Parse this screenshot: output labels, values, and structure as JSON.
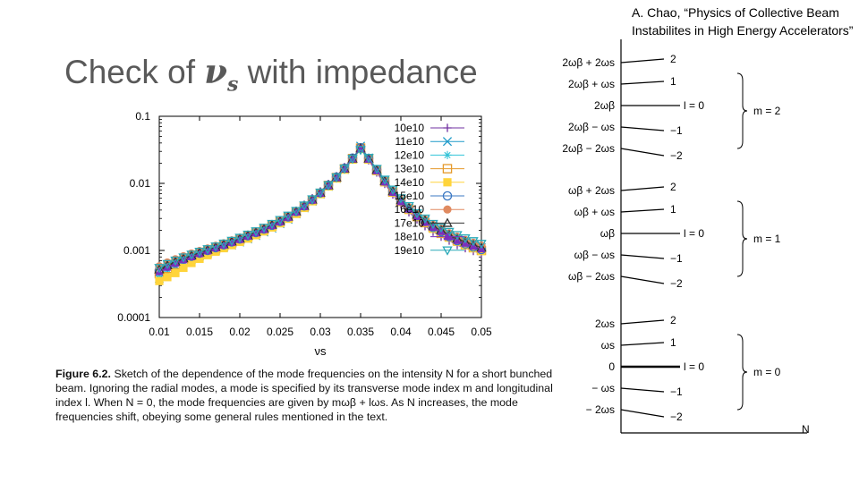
{
  "slide": {
    "title_prefix": "Check of",
    "title_symbol": "ν",
    "title_symbol_sub": "s",
    "title_suffix": "with impedance",
    "citation": "A. Chao, “Physics of Collective Beam Instabilites in High Energy Accelerators”"
  },
  "caption": {
    "label": "Figure 6.2.",
    "text": "Sketch of the dependence of the mode frequencies on the intensity N for a short bunched beam. Ignoring the radial modes, a mode is specified by its transverse mode index m and longitudinal index l. When N = 0, the mode frequencies are given by mωβ + lωs. As N increases, the mode frequencies shift, obeying some general rules mentioned in the text."
  },
  "chart_data": {
    "type": "scatter",
    "xlabel": "νs",
    "ylabel": "",
    "xscale": "linear",
    "yscale": "log",
    "xlim": [
      0.01,
      0.05
    ],
    "ylim": [
      0.0001,
      0.1
    ],
    "xticks": [
      "0.01",
      "0.015",
      "0.02",
      "0.025",
      "0.03",
      "0.035",
      "0.04",
      "0.045",
      "0.05"
    ],
    "yticks": [
      "0.1",
      "0.01",
      "0.001",
      "0.0001"
    ],
    "legend_position": "top-right",
    "x": [
      0.01,
      0.011,
      0.012,
      0.013,
      0.014,
      0.015,
      0.016,
      0.017,
      0.018,
      0.019,
      0.02,
      0.021,
      0.022,
      0.023,
      0.024,
      0.025,
      0.026,
      0.027,
      0.028,
      0.029,
      0.03,
      0.031,
      0.032,
      0.033,
      0.034,
      0.035,
      0.036,
      0.037,
      0.038,
      0.039,
      0.04,
      0.041,
      0.042,
      0.043,
      0.044,
      0.045,
      0.046,
      0.047,
      0.048,
      0.049,
      0.05
    ],
    "series": [
      {
        "name": "10e10",
        "marker": "plus",
        "color": "#7030a0",
        "values": [
          0.00056,
          0.00062,
          0.00068,
          0.00075,
          0.00082,
          0.0009,
          0.00098,
          0.00107,
          0.00118,
          0.0013,
          0.00143,
          0.0016,
          0.0018,
          0.00205,
          0.00235,
          0.0027,
          0.0032,
          0.0039,
          0.0048,
          0.006,
          0.0076,
          0.0098,
          0.0128,
          0.0175,
          0.024,
          0.033,
          0.022,
          0.0145,
          0.0098,
          0.0068,
          0.0049,
          0.0037,
          0.0029,
          0.0023,
          0.0019,
          0.0016,
          0.0014,
          0.0012,
          0.00108,
          0.00098,
          0.0009
        ]
      },
      {
        "name": "11e10",
        "marker": "x",
        "color": "#1f9ac9",
        "values": [
          0.00038,
          0.00048,
          0.00058,
          0.00066,
          0.00074,
          0.00082,
          0.0009,
          0.001,
          0.0011,
          0.0012,
          0.00133,
          0.00148,
          0.00166,
          0.00188,
          0.00215,
          0.0025,
          0.0029,
          0.0035,
          0.0043,
          0.0054,
          0.0069,
          0.009,
          0.0118,
          0.016,
          0.023,
          0.036,
          0.024,
          0.016,
          0.0108,
          0.0076,
          0.0056,
          0.0043,
          0.0034,
          0.0028,
          0.0023,
          0.0019,
          0.0017,
          0.0015,
          0.0013,
          0.0012,
          0.0011
        ]
      },
      {
        "name": "12e10",
        "marker": "star",
        "color": "#33c4d8",
        "values": [
          0.00042,
          0.00052,
          0.0006,
          0.00068,
          0.00076,
          0.00084,
          0.00093,
          0.00103,
          0.00114,
          0.00126,
          0.0014,
          0.00156,
          0.00175,
          0.00198,
          0.00226,
          0.0026,
          0.003,
          0.0036,
          0.0044,
          0.0055,
          0.007,
          0.0091,
          0.012,
          0.0163,
          0.0232,
          0.034,
          0.0235,
          0.0158,
          0.0107,
          0.0075,
          0.0055,
          0.0042,
          0.0033,
          0.0027,
          0.0022,
          0.0019,
          0.0016,
          0.0014,
          0.00125,
          0.00113,
          0.00102
        ]
      },
      {
        "name": "13e10",
        "marker": "square-open",
        "color": "#e59a2c",
        "values": [
          0.00045,
          0.00054,
          0.00062,
          0.0007,
          0.00078,
          0.00087,
          0.00096,
          0.00106,
          0.00117,
          0.0013,
          0.00144,
          0.0016,
          0.0018,
          0.00203,
          0.00232,
          0.00266,
          0.0031,
          0.0037,
          0.0045,
          0.0056,
          0.0071,
          0.0093,
          0.0122,
          0.0165,
          0.0234,
          0.0335,
          0.0232,
          0.0156,
          0.0106,
          0.0074,
          0.0054,
          0.0041,
          0.0032,
          0.0026,
          0.0022,
          0.0018,
          0.0016,
          0.0014,
          0.00122,
          0.0011,
          0.001
        ]
      },
      {
        "name": "14e10",
        "marker": "square-filled",
        "color": "#ffd43b",
        "values": [
          0.00035,
          0.0004,
          0.00046,
          0.00055,
          0.00065,
          0.00075,
          0.00085,
          0.00096,
          0.00108,
          0.0012,
          0.00134,
          0.0015,
          0.00169,
          0.00192,
          0.0022,
          0.00254,
          0.00296,
          0.0035,
          0.0043,
          0.0054,
          0.0069,
          0.009,
          0.0118,
          0.016,
          0.0226,
          0.0325,
          0.0226,
          0.0152,
          0.0104,
          0.0073,
          0.0053,
          0.0041,
          0.0032,
          0.0026,
          0.0021,
          0.0018,
          0.00155,
          0.00135,
          0.0012,
          0.00108,
          0.00098
        ]
      },
      {
        "name": "15e10",
        "marker": "circle-open",
        "color": "#3b78c3",
        "values": [
          0.0005,
          0.00058,
          0.00066,
          0.00074,
          0.00082,
          0.00091,
          0.001,
          0.0011,
          0.00121,
          0.00134,
          0.00148,
          0.00165,
          0.00185,
          0.00208,
          0.00237,
          0.0027,
          0.00315,
          0.0038,
          0.0046,
          0.0057,
          0.0072,
          0.0094,
          0.0124,
          0.0168,
          0.0238,
          0.034,
          0.0236,
          0.0159,
          0.0108,
          0.0076,
          0.0055,
          0.0042,
          0.0033,
          0.0027,
          0.0022,
          0.0019,
          0.0016,
          0.0014,
          0.00125,
          0.00113,
          0.00103
        ]
      },
      {
        "name": "16e10",
        "marker": "circle-filled",
        "color": "#e08a60",
        "values": [
          0.00058,
          0.00066,
          0.00074,
          0.00082,
          0.0009,
          0.00098,
          0.00107,
          0.00117,
          0.00128,
          0.00141,
          0.00155,
          0.00172,
          0.00192,
          0.00215,
          0.00244,
          0.00278,
          0.0032,
          0.0038,
          0.0046,
          0.0057,
          0.0072,
          0.0093,
          0.0122,
          0.0165,
          0.0232,
          0.033,
          0.0232,
          0.0158,
          0.0109,
          0.0077,
          0.0057,
          0.0044,
          0.0035,
          0.0029,
          0.0024,
          0.0021,
          0.0018,
          0.0016,
          0.00143,
          0.0013,
          0.00118
        ]
      },
      {
        "name": "17e10",
        "marker": "triangle-open",
        "color": "#333333",
        "values": [
          0.00052,
          0.0006,
          0.00068,
          0.00076,
          0.00084,
          0.00093,
          0.00102,
          0.00112,
          0.00123,
          0.00136,
          0.0015,
          0.00167,
          0.00187,
          0.0021,
          0.0024,
          0.00274,
          0.00318,
          0.0038,
          0.0046,
          0.0057,
          0.0072,
          0.0093,
          0.0122,
          0.0165,
          0.0232,
          0.0332,
          0.0233,
          0.0158,
          0.0108,
          0.0076,
          0.0056,
          0.0043,
          0.0034,
          0.0028,
          0.0023,
          0.002,
          0.0017,
          0.0015,
          0.00135,
          0.00122,
          0.0011
        ]
      },
      {
        "name": "18e10",
        "marker": "triangle-filled",
        "color": "#7b2fbe",
        "values": [
          0.00048,
          0.00056,
          0.00064,
          0.00072,
          0.0008,
          0.00089,
          0.00098,
          0.00108,
          0.00119,
          0.00131,
          0.00145,
          0.00162,
          0.00181,
          0.00204,
          0.00233,
          0.00266,
          0.0031,
          0.0037,
          0.0045,
          0.0056,
          0.0071,
          0.0092,
          0.0121,
          0.0164,
          0.023,
          0.033,
          0.0228,
          0.0153,
          0.0104,
          0.0073,
          0.0053,
          0.0041,
          0.0032,
          0.0026,
          0.0022,
          0.0019,
          0.0016,
          0.0014,
          0.00127,
          0.00115,
          0.00105
        ]
      },
      {
        "name": "19e10",
        "marker": "triangle-down-open",
        "color": "#2aa9b8",
        "values": [
          0.00055,
          0.00063,
          0.00071,
          0.00079,
          0.00087,
          0.00096,
          0.00105,
          0.00115,
          0.00127,
          0.0014,
          0.00155,
          0.00173,
          0.00194,
          0.00219,
          0.0025,
          0.00286,
          0.00332,
          0.0039,
          0.0047,
          0.0058,
          0.0073,
          0.0094,
          0.0123,
          0.0166,
          0.0233,
          0.0315,
          0.024,
          0.0165,
          0.0114,
          0.0081,
          0.006,
          0.0046,
          0.0036,
          0.003,
          0.0025,
          0.0022,
          0.0019,
          0.0017,
          0.00152,
          0.00138,
          0.00126
        ]
      }
    ]
  },
  "mode_diagram": {
    "groups": [
      {
        "label": "m = 2",
        "center": "l = 0",
        "freqs": [
          "2ωβ + 2ωs",
          "2ωβ + ωs",
          "2ωβ",
          "2ωβ − ωs",
          "2ωβ − 2ωs"
        ],
        "indices": [
          "2",
          "1",
          "l = 0",
          "−1",
          "−2"
        ]
      },
      {
        "label": "m = 1",
        "center": "l = 0",
        "freqs": [
          "ωβ + 2ωs",
          "ωβ + ωs",
          "ωβ",
          "ωβ − ωs",
          "ωβ − 2ωs"
        ],
        "indices": [
          "2",
          "1",
          "l = 0",
          "−1",
          "−2"
        ]
      },
      {
        "label": "m = 0",
        "center": "l = 0",
        "freqs": [
          "2ωs",
          "ωs",
          "0",
          "− ωs",
          "− 2ωs"
        ],
        "indices": [
          "2",
          "1",
          "l = 0",
          "−1",
          "−2"
        ]
      }
    ],
    "axis_label": "N"
  }
}
